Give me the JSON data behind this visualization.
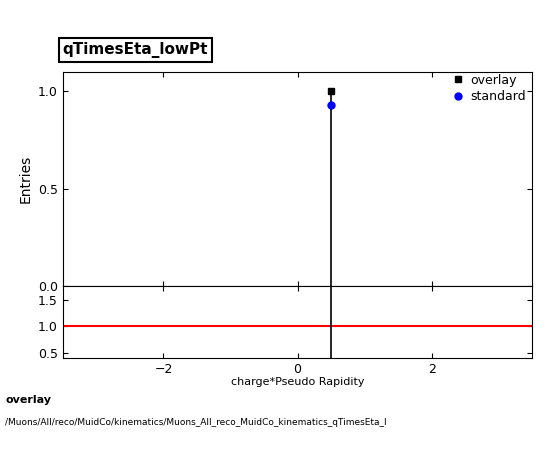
{
  "title": "qTimesEta_lowPt",
  "xlabel": "charge*Pseudo Rapidity",
  "ylabel_main": "Entries",
  "xlim": [
    -3.5,
    3.5
  ],
  "ylim_main": [
    0,
    1.1
  ],
  "ylim_ratio": [
    0.4,
    1.75
  ],
  "ratio_yticks": [
    0.5,
    1.0,
    1.5
  ],
  "main_yticks": [
    0,
    0.5,
    1
  ],
  "spike_x": 0.5,
  "spike_y": 1.0,
  "overlay_label": "overlay",
  "standard_label": "standard",
  "overlay_color": "#000000",
  "standard_color": "#0000ff",
  "red_line_color": "#ff0000",
  "red_line_y": 1.0,
  "footer_line1": "overlay",
  "footer_line2": "/Muons/All/reco/MuidCo/kinematics/Muons_All_reco_MuidCo_kinematics_qTimesEta_l",
  "background_color": "#ffffff",
  "xticks": [
    -2,
    0,
    2
  ]
}
